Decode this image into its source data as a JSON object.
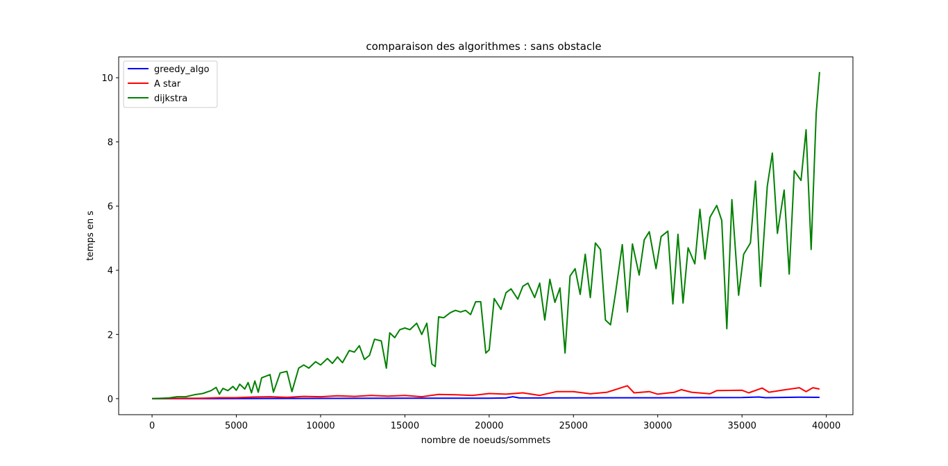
{
  "chart_data": {
    "type": "line",
    "title": "comparaison des algorithmes : sans obstacle",
    "xlabel": "nombre de noeuds/sommets",
    "ylabel": "temps en s",
    "xlim": [
      -1980,
      41580
    ],
    "ylim": [
      -0.5,
      10.65
    ],
    "xticks": [
      0,
      5000,
      10000,
      15000,
      20000,
      25000,
      30000,
      35000,
      40000
    ],
    "xtick_labels": [
      "0",
      "5000",
      "10000",
      "15000",
      "20000",
      "25000",
      "30000",
      "35000",
      "40000"
    ],
    "yticks": [
      0,
      2,
      4,
      6,
      8,
      10
    ],
    "ytick_labels": [
      "0",
      "2",
      "4",
      "6",
      "8",
      "10"
    ],
    "grid": false,
    "legend_position": "top-left",
    "series": [
      {
        "name": "greedy_algo",
        "color": "#0000ff",
        "points": [
          [
            0,
            0
          ],
          [
            5000,
            0.004
          ],
          [
            10000,
            0.008
          ],
          [
            15000,
            0.012
          ],
          [
            20000,
            0.015
          ],
          [
            21000,
            0.02
          ],
          [
            21400,
            0.06
          ],
          [
            21800,
            0.02
          ],
          [
            25000,
            0.025
          ],
          [
            30000,
            0.028
          ],
          [
            35000,
            0.035
          ],
          [
            36000,
            0.05
          ],
          [
            36400,
            0.03
          ],
          [
            38400,
            0.045
          ],
          [
            39600,
            0.04
          ]
        ]
      },
      {
        "name": "A star",
        "color": "#ff0000",
        "points": [
          [
            0,
            0
          ],
          [
            1000,
            0.005
          ],
          [
            2000,
            0.01
          ],
          [
            3000,
            0.015
          ],
          [
            4000,
            0.03
          ],
          [
            5000,
            0.03
          ],
          [
            6000,
            0.05
          ],
          [
            7000,
            0.06
          ],
          [
            8000,
            0.04
          ],
          [
            9000,
            0.07
          ],
          [
            10000,
            0.06
          ],
          [
            11000,
            0.09
          ],
          [
            12000,
            0.07
          ],
          [
            13000,
            0.1
          ],
          [
            14000,
            0.08
          ],
          [
            15000,
            0.1
          ],
          [
            16000,
            0.06
          ],
          [
            17000,
            0.13
          ],
          [
            18000,
            0.12
          ],
          [
            19000,
            0.1
          ],
          [
            20000,
            0.16
          ],
          [
            21000,
            0.14
          ],
          [
            22000,
            0.18
          ],
          [
            23000,
            0.1
          ],
          [
            24000,
            0.22
          ],
          [
            25000,
            0.22
          ],
          [
            26000,
            0.15
          ],
          [
            27000,
            0.2
          ],
          [
            28200,
            0.4
          ],
          [
            28600,
            0.18
          ],
          [
            29500,
            0.22
          ],
          [
            30000,
            0.14
          ],
          [
            31000,
            0.2
          ],
          [
            31400,
            0.28
          ],
          [
            32000,
            0.2
          ],
          [
            33100,
            0.15
          ],
          [
            33500,
            0.25
          ],
          [
            35000,
            0.26
          ],
          [
            35400,
            0.18
          ],
          [
            36200,
            0.33
          ],
          [
            36600,
            0.2
          ],
          [
            37600,
            0.28
          ],
          [
            38400,
            0.34
          ],
          [
            38800,
            0.22
          ],
          [
            39200,
            0.34
          ],
          [
            39600,
            0.3
          ]
        ]
      },
      {
        "name": "dijkstra",
        "color": "#008000",
        "points": [
          [
            0,
            0
          ],
          [
            500,
            0.01
          ],
          [
            1000,
            0.02
          ],
          [
            1500,
            0.06
          ],
          [
            2000,
            0.06
          ],
          [
            2500,
            0.12
          ],
          [
            3000,
            0.16
          ],
          [
            3500,
            0.25
          ],
          [
            3800,
            0.35
          ],
          [
            4000,
            0.14
          ],
          [
            4200,
            0.32
          ],
          [
            4500,
            0.25
          ],
          [
            4800,
            0.38
          ],
          [
            5000,
            0.26
          ],
          [
            5200,
            0.45
          ],
          [
            5500,
            0.3
          ],
          [
            5700,
            0.5
          ],
          [
            5900,
            0.18
          ],
          [
            6100,
            0.55
          ],
          [
            6300,
            0.2
          ],
          [
            6500,
            0.65
          ],
          [
            7000,
            0.75
          ],
          [
            7200,
            0.2
          ],
          [
            7600,
            0.8
          ],
          [
            8000,
            0.85
          ],
          [
            8300,
            0.22
          ],
          [
            8700,
            0.95
          ],
          [
            9000,
            1.05
          ],
          [
            9300,
            0.95
          ],
          [
            9700,
            1.15
          ],
          [
            10000,
            1.05
          ],
          [
            10400,
            1.25
          ],
          [
            10700,
            1.1
          ],
          [
            11000,
            1.3
          ],
          [
            11300,
            1.12
          ],
          [
            11700,
            1.5
          ],
          [
            12000,
            1.45
          ],
          [
            12300,
            1.65
          ],
          [
            12600,
            1.22
          ],
          [
            12900,
            1.35
          ],
          [
            13200,
            1.85
          ],
          [
            13600,
            1.8
          ],
          [
            13900,
            0.95
          ],
          [
            14100,
            2.05
          ],
          [
            14400,
            1.9
          ],
          [
            14700,
            2.15
          ],
          [
            15000,
            2.2
          ],
          [
            15300,
            2.15
          ],
          [
            15700,
            2.35
          ],
          [
            16000,
            2.0
          ],
          [
            16300,
            2.35
          ],
          [
            16600,
            1.08
          ],
          [
            16800,
            1.0
          ],
          [
            17000,
            2.55
          ],
          [
            17300,
            2.52
          ],
          [
            17700,
            2.68
          ],
          [
            18000,
            2.75
          ],
          [
            18300,
            2.7
          ],
          [
            18600,
            2.75
          ],
          [
            18900,
            2.62
          ],
          [
            19200,
            3.02
          ],
          [
            19500,
            3.02
          ],
          [
            19800,
            1.42
          ],
          [
            20000,
            1.52
          ],
          [
            20300,
            3.12
          ],
          [
            20700,
            2.78
          ],
          [
            21000,
            3.3
          ],
          [
            21300,
            3.42
          ],
          [
            21700,
            3.1
          ],
          [
            22000,
            3.5
          ],
          [
            22300,
            3.6
          ],
          [
            22700,
            3.15
          ],
          [
            23000,
            3.6
          ],
          [
            23300,
            2.45
          ],
          [
            23600,
            3.72
          ],
          [
            23900,
            3.0
          ],
          [
            24200,
            3.45
          ],
          [
            24500,
            1.42
          ],
          [
            24800,
            3.82
          ],
          [
            25100,
            4.05
          ],
          [
            25400,
            3.25
          ],
          [
            25700,
            4.5
          ],
          [
            26000,
            3.15
          ],
          [
            26300,
            4.85
          ],
          [
            26600,
            4.65
          ],
          [
            26900,
            2.45
          ],
          [
            27200,
            2.3
          ],
          [
            27500,
            3.3
          ],
          [
            27900,
            4.8
          ],
          [
            28200,
            2.7
          ],
          [
            28500,
            4.82
          ],
          [
            28900,
            3.85
          ],
          [
            29200,
            4.95
          ],
          [
            29500,
            5.2
          ],
          [
            29900,
            4.05
          ],
          [
            30200,
            5.05
          ],
          [
            30600,
            5.22
          ],
          [
            30900,
            2.95
          ],
          [
            31200,
            5.12
          ],
          [
            31500,
            2.98
          ],
          [
            31800,
            4.7
          ],
          [
            32200,
            4.2
          ],
          [
            32500,
            5.9
          ],
          [
            32800,
            4.35
          ],
          [
            33100,
            5.65
          ],
          [
            33500,
            6.02
          ],
          [
            33800,
            5.55
          ],
          [
            34100,
            2.18
          ],
          [
            34400,
            6.2
          ],
          [
            34800,
            3.22
          ],
          [
            35100,
            4.5
          ],
          [
            35500,
            4.85
          ],
          [
            35800,
            6.78
          ],
          [
            36100,
            3.5
          ],
          [
            36500,
            6.62
          ],
          [
            36800,
            7.65
          ],
          [
            37100,
            5.15
          ],
          [
            37500,
            6.5
          ],
          [
            37800,
            3.88
          ],
          [
            38100,
            7.1
          ],
          [
            38500,
            6.8
          ],
          [
            38800,
            8.38
          ],
          [
            39100,
            4.65
          ],
          [
            39400,
            8.9
          ],
          [
            39600,
            10.18
          ]
        ]
      }
    ]
  }
}
